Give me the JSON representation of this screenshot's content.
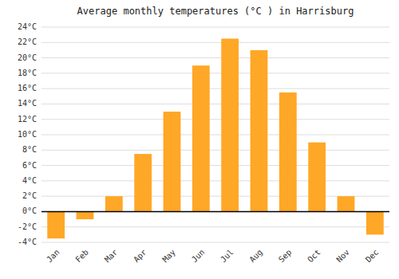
{
  "chart_data": {
    "type": "bar",
    "title": "Average monthly temperatures (°C ) in Harrisburg",
    "categories": [
      "Jan",
      "Feb",
      "Mar",
      "Apr",
      "May",
      "Jun",
      "Jul",
      "Aug",
      "Sep",
      "Oct",
      "Nov",
      "Dec"
    ],
    "values": [
      -3.5,
      -1.0,
      2.0,
      7.5,
      13.0,
      19.0,
      22.5,
      21.0,
      15.5,
      9.0,
      2.0,
      -3.0
    ],
    "color": "#FFA726",
    "ylim": [
      -4,
      24
    ],
    "yticks": [
      {
        "value": -4,
        "label": "-4°C"
      },
      {
        "value": -2,
        "label": "-2°C"
      },
      {
        "value": 0,
        "label": "0°C"
      },
      {
        "value": 2,
        "label": "2°C"
      },
      {
        "value": 4,
        "label": "4°C"
      },
      {
        "value": 6,
        "label": "6°C"
      },
      {
        "value": 8,
        "label": "8°C"
      },
      {
        "value": 10,
        "label": "10°C"
      },
      {
        "value": 12,
        "label": "12°C"
      },
      {
        "value": 14,
        "label": "14°C"
      },
      {
        "value": 16,
        "label": "16°C"
      },
      {
        "value": 18,
        "label": "18°C"
      },
      {
        "value": 20,
        "label": "20°C"
      },
      {
        "value": 22,
        "label": "22°C"
      },
      {
        "value": 24,
        "label": "24°C"
      }
    ],
    "grid": true
  }
}
